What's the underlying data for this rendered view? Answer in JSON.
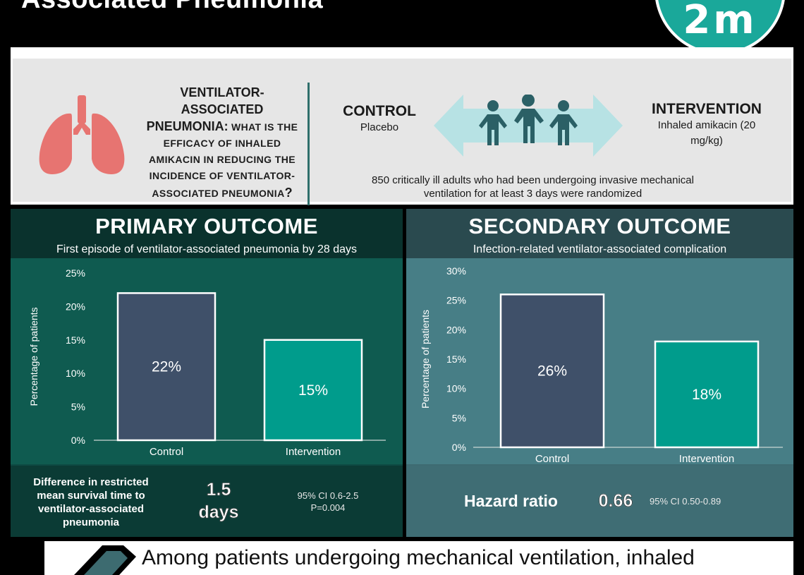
{
  "header": {
    "title": "Associated Pneumonia",
    "logo_text": "2m"
  },
  "question": {
    "line1": "VENTILATOR-",
    "line2": "ASSOCIATED",
    "line3_big": "PNEUMONIA:",
    "line3_small": " WHAT IS THE",
    "line4": "EFFICACY OF INHALED",
    "line5": "AMIKACIN IN REDUCING THE",
    "line6": "INCIDENCE OF VENTILATOR-",
    "line7_small": "ASSOCIATED PNEUMONIA",
    "line7_big": "?"
  },
  "trial": {
    "control_label": "CONTROL",
    "control_sub": "Placebo",
    "intervention_label": "INTERVENTION",
    "intervention_sub": "Inhaled amikacin (20 mg/kg)",
    "population": "850 critically ill adults who had been undergoing invasive mechanical ventilation for at least 3 days were randomized"
  },
  "colors": {
    "control_bar": "#3f5069",
    "intervention_bar": "#009c8c",
    "bar_outline": "#ffffff",
    "lungs": "#e77471",
    "people": "#2b6066",
    "arrow": "#b7e2e4"
  },
  "icons": {
    "lungs": "lungs-icon",
    "people": "people-icon",
    "arrow": "double-arrow-icon",
    "pencil": "pencil-icon"
  },
  "primary": {
    "title": "PRIMARY OUTCOME",
    "subtitle": "First episode of ventilator-associated pneumonia by 28 days",
    "footer_label": "Difference in restricted mean survival time to ventilator-associated pneumonia",
    "footer_value_line1": "1.5",
    "footer_value_line2": "days",
    "footer_ci": "95% CI 0.6-2.5",
    "footer_p": "P=0.004"
  },
  "secondary": {
    "title": "SECONDARY OUTCOME",
    "subtitle": "Infection-related ventilator-associated complication",
    "footer_label": "Hazard ratio",
    "footer_value": "0.66",
    "footer_ci": "95% CI 0.50-0.89"
  },
  "chart_data": [
    {
      "type": "bar",
      "categories": [
        "Control",
        "Intervention"
      ],
      "values": [
        22,
        15
      ],
      "data_labels": [
        "22%",
        "15%"
      ],
      "ylabel": "Percentage of patients",
      "ylim": [
        0,
        25
      ],
      "yticks": [
        0,
        5,
        10,
        15,
        20,
        25
      ],
      "ytick_labels": [
        "0%",
        "5%",
        "10%",
        "15%",
        "20%",
        "25%"
      ],
      "grid": false
    },
    {
      "type": "bar",
      "categories": [
        "Control",
        "Intervention"
      ],
      "values": [
        26,
        18
      ],
      "data_labels": [
        "26%",
        "18%"
      ],
      "ylabel": "Percentage of patients",
      "ylim": [
        0,
        30
      ],
      "yticks": [
        0,
        5,
        10,
        15,
        20,
        25,
        30
      ],
      "ytick_labels": [
        "0%",
        "5%",
        "10%",
        "15%",
        "20%",
        "25%",
        "30%"
      ],
      "grid": false
    }
  ],
  "conclusion": {
    "text": "Among patients undergoing mechanical ventilation, inhaled"
  }
}
